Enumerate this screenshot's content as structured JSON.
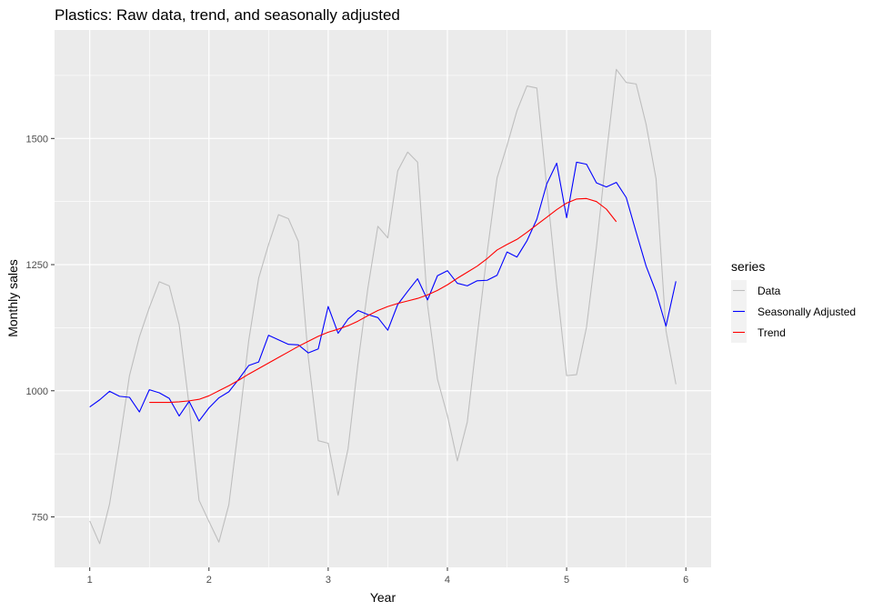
{
  "chart_data": {
    "type": "line",
    "title": "Plastics: Raw data, trend, and seasonally adjusted",
    "xlabel": "Year",
    "ylabel": "Monthly sales",
    "xlim": [
      0.705,
      6.212
    ],
    "ylim": [
      650,
      1715
    ],
    "x_ticks": [
      1,
      2,
      3,
      4,
      5,
      6
    ],
    "x_tick_labels": [
      "1",
      "2",
      "3",
      "4",
      "5",
      "6"
    ],
    "y_ticks": [
      750,
      1000,
      1250,
      1500
    ],
    "y_tick_labels": [
      "750",
      "1000",
      "1250",
      "1500"
    ],
    "grid": true,
    "legend": {
      "title": "series",
      "position": "right",
      "entries": [
        "Data",
        "Seasonally Adjusted",
        "Trend"
      ]
    },
    "series": [
      {
        "name": "Data",
        "color": "#bebebe",
        "x_start": 1,
        "x_step": 0.0833333,
        "values": [
          742,
          697,
          776,
          898,
          1030,
          1107,
          1165,
          1216,
          1208,
          1131,
          971,
          783,
          741,
          700,
          774,
          932,
          1099,
          1223,
          1290,
          1349,
          1341,
          1296,
          1066,
          901,
          896,
          793,
          885,
          1055,
          1204,
          1326,
          1303,
          1436,
          1473,
          1453,
          1170,
          1023,
          951,
          861,
          938,
          1109,
          1274,
          1422,
          1486,
          1555,
          1604,
          1600,
          1403,
          1209,
          1030,
          1032,
          1126,
          1285,
          1468,
          1637,
          1611,
          1608,
          1528,
          1420,
          1119,
          1013
        ]
      },
      {
        "name": "Seasonally Adjusted",
        "color": "#0000ff",
        "x_start": 1,
        "x_step": 0.0833333,
        "values": [
          968,
          982,
          999,
          989,
          987,
          958,
          1002,
          996,
          985,
          950,
          979,
          940,
          966,
          986,
          998,
          1023,
          1050,
          1057,
          1110,
          1101,
          1092,
          1091,
          1075,
          1083,
          1167,
          1114,
          1142,
          1159,
          1151,
          1145,
          1120,
          1171,
          1197,
          1222,
          1180,
          1228,
          1238,
          1213,
          1208,
          1218,
          1219,
          1229,
          1275,
          1265,
          1297,
          1340,
          1410,
          1451,
          1343,
          1453,
          1449,
          1412,
          1404,
          1413,
          1383,
          1314,
          1247,
          1196,
          1128,
          1217
        ]
      },
      {
        "name": "Trend",
        "color": "#ff0000",
        "x_start": 1.5,
        "x_step": 0.0833333,
        "values": [
          977,
          977,
          977,
          978,
          980,
          983,
          990,
          1000,
          1010,
          1021,
          1033,
          1044,
          1055,
          1066,
          1077,
          1088,
          1098,
          1108,
          1116,
          1122,
          1129,
          1138,
          1149,
          1159,
          1167,
          1173,
          1178,
          1183,
          1190,
          1199,
          1210,
          1223,
          1235,
          1247,
          1262,
          1279,
          1290,
          1300,
          1314,
          1329,
          1344,
          1359,
          1372,
          1380,
          1381,
          1375,
          1360,
          1335
        ]
      }
    ]
  }
}
